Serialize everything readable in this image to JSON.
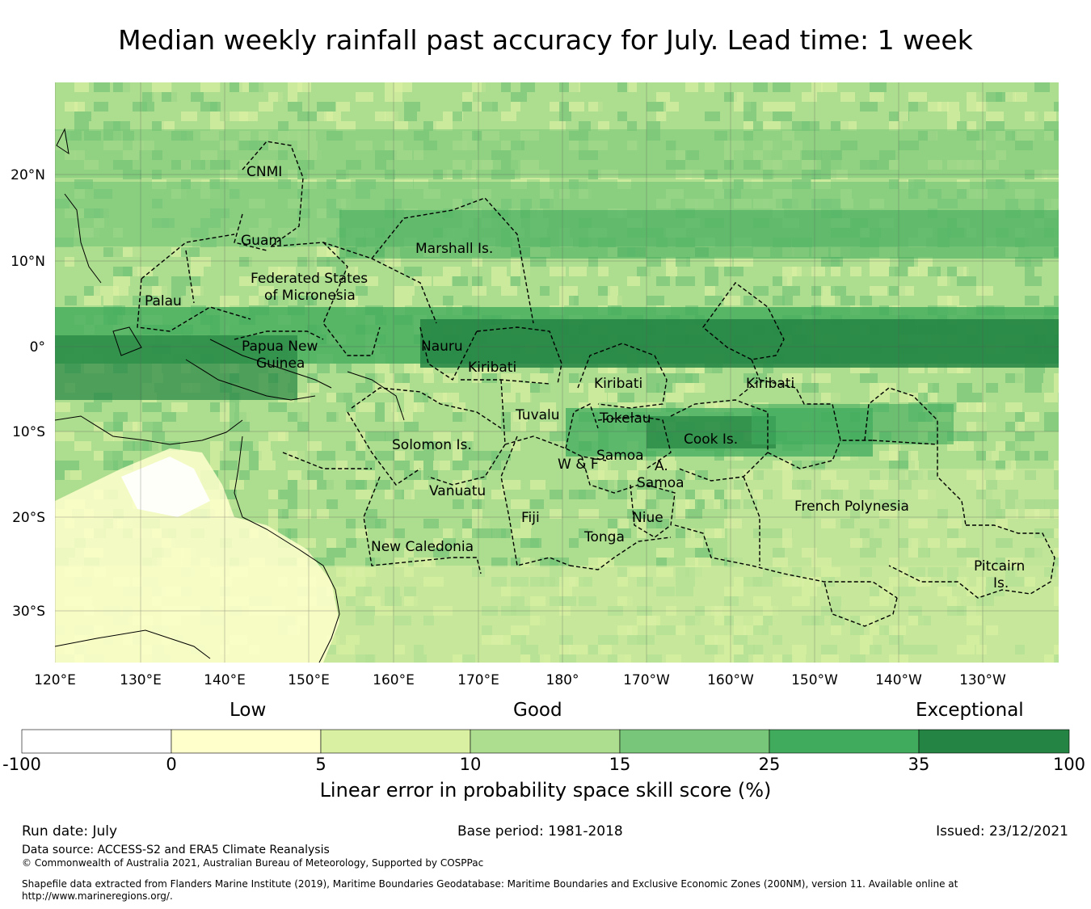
{
  "title": "Median weekly rainfall past accuracy for July. Lead time: 1 week",
  "map": {
    "lon_labels": [
      "120°E",
      "130°E",
      "140°E",
      "150°E",
      "160°E",
      "170°E",
      "180°",
      "170°W",
      "160°W",
      "150°W",
      "140°W",
      "130°W"
    ],
    "lat_labels": [
      "20°N",
      "10°N",
      "0°",
      "10°S",
      "20°S",
      "30°S"
    ],
    "regions": [
      "CNMI",
      "Guam",
      "Marshall Is.",
      "Federated States",
      "of Micronesia",
      "Palau",
      "Papua New",
      "Guinea",
      "Nauru",
      "Kiribati",
      "Kiribati",
      "Kiribati",
      "Tuvalu",
      "Tokelau",
      "Cook Is.",
      "Solomon Is.",
      "Samoa",
      "W & F",
      "A.",
      "Samoa",
      "Vanuatu",
      "Fiji",
      "Niue",
      "Tonga",
      "French Polynesia",
      "New Caledonia",
      "Pitcairn",
      "Is."
    ]
  },
  "legend": {
    "words": {
      "low": "Low",
      "good": "Good",
      "exceptional": "Exceptional"
    },
    "ticks": [
      "-100",
      "0",
      "5",
      "10",
      "15",
      "25",
      "35",
      "100"
    ],
    "colors": [
      "#ffffff",
      "#ffffcc",
      "#d9f0a3",
      "#addd8e",
      "#78c679",
      "#41ab5d",
      "#238443"
    ],
    "label": "Linear error in probability space skill score (%)"
  },
  "footer": {
    "run_date": "Run date: July",
    "base_period": "Base period: 1981-2018",
    "issued": "Issued: 23/12/2021",
    "data_source": "Data source: ACCESS-S2 and ERA5 Climate Reanalysis",
    "copyright": "© Commonwealth of Australia 2021, Australian Bureau of Meteorology, Supported by COSPPac",
    "shapefile": "Shapefile data extracted from Flanders Marine Institute (2019), Maritime Boundaries Geodatabase: Maritime Boundaries and Exclusive Economic Zones (200NM), version 11. Available online at http://www.marineregions.org/."
  }
}
